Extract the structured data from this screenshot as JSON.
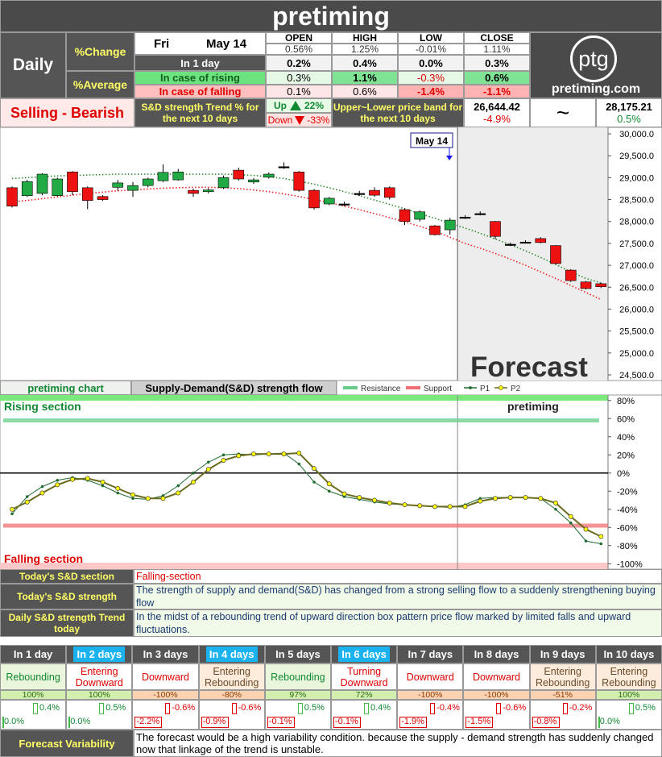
{
  "header": {
    "title": "pretiming"
  },
  "summary": {
    "period": "Daily",
    "change_label": "%Change",
    "average_label": "%Average",
    "day": "Fri",
    "date": "May 14",
    "columns": [
      "OPEN",
      "HIGH",
      "LOW",
      "CLOSE"
    ],
    "change": [
      "0.56%",
      "1.25%",
      "-0.01%",
      "1.11%"
    ],
    "rows": [
      {
        "label": "In 1 day",
        "values": [
          "0.2%",
          "0.4%",
          "0.0%",
          "0.3%"
        ]
      },
      {
        "label": "In case of rising",
        "values": [
          "0.3%",
          "1.1%",
          "-0.3%",
          "0.6%"
        ]
      },
      {
        "label": "In case of falling",
        "values": [
          "0.1%",
          "0.6%",
          "-1.4%",
          "-1.1%"
        ]
      }
    ],
    "logo": "ptg",
    "site": "pretiming.com"
  },
  "trend": {
    "signal": "Selling - Bearish",
    "strength_label": "S&D strength Trend % for the next 10 days",
    "up_label": "Up",
    "up_value": "22%",
    "down_label": "Down",
    "down_value": "-33%",
    "band_label": "Upper~Lower price band for the next 10 days",
    "lower": "26,644.42",
    "lower_change": "-4.9%",
    "separator": "~",
    "upper": "28,175.21",
    "upper_change": "0.5%"
  },
  "chart_data": [
    {
      "type": "candlestick",
      "annotation": "May 14",
      "forecast_label": "Forecast",
      "ylim": [
        24500,
        30000
      ],
      "yticks": [
        {
          "value": 24500,
          "label": "24,500.0"
        },
        {
          "value": 25000,
          "label": "25,000.0"
        },
        {
          "value": 25500,
          "label": "25,500.0"
        },
        {
          "value": 26000,
          "label": "26,000.0"
        },
        {
          "value": 26500,
          "label": "26,500.0"
        },
        {
          "value": 27000,
          "label": "27,000.0"
        },
        {
          "value": 27500,
          "label": "27,500.0"
        },
        {
          "value": 28000,
          "label": "28,000.0"
        },
        {
          "value": 28500,
          "label": "28,500.0"
        },
        {
          "value": 29000,
          "label": "29,000.0"
        },
        {
          "value": 29500,
          "label": "29,500.0"
        },
        {
          "value": 30000,
          "label": "30,000.0"
        }
      ],
      "up_color": "#22aa44",
      "down_color": "#ee1111",
      "flat_color": "#000000",
      "open": [
        28770,
        28590,
        28640,
        28590,
        29130,
        28770,
        28570,
        28780,
        28710,
        28820,
        28930,
        28950,
        28710,
        28680,
        28770,
        29170,
        28900,
        29010,
        29250,
        29130,
        28710,
        28400,
        28400,
        28640,
        28710,
        28770,
        28270,
        28050,
        27900,
        27810,
        28100,
        28180,
        28000,
        27480,
        27530,
        27610,
        27450,
        26890,
        26620,
        26580
      ],
      "high": [
        28800,
        28950,
        29100,
        29000,
        29150,
        28800,
        28600,
        28950,
        28900,
        29000,
        29300,
        29200,
        28750,
        28760,
        29050,
        29230,
        28990,
        29120,
        29350,
        29150,
        28740,
        28560,
        28450,
        28700,
        28780,
        28800,
        28300,
        28250,
        27920,
        28080,
        28140,
        28230,
        28010,
        27520,
        27570,
        27640,
        27460,
        26910,
        26640,
        26600
      ],
      "low": [
        28320,
        28560,
        28600,
        28570,
        28600,
        28280,
        28470,
        28700,
        28560,
        28780,
        28900,
        28930,
        28560,
        28640,
        28740,
        28930,
        28860,
        28980,
        29200,
        28680,
        28270,
        28370,
        28350,
        28580,
        28560,
        28500,
        27920,
        28000,
        27680,
        27700,
        28060,
        28140,
        27600,
        27440,
        27500,
        27500,
        27020,
        26620,
        26450,
        26480
      ],
      "close": [
        28350,
        28910,
        29080,
        28970,
        28680,
        28480,
        28500,
        28880,
        28820,
        28970,
        29120,
        29130,
        28640,
        28720,
        29000,
        28970,
        28950,
        29080,
        29250,
        28710,
        28310,
        28530,
        28400,
        28640,
        28600,
        28550,
        28000,
        28220,
        27700,
        28030,
        28100,
        28180,
        27660,
        27480,
        27530,
        27520,
        27040,
        26650,
        26470,
        26510
      ],
      "lines": [
        {
          "color": "#2e8b2e",
          "values": [
            28980,
            29000,
            29020,
            29040,
            29050,
            29060,
            29070,
            29080,
            29080,
            29080,
            29080,
            29080,
            29080,
            29080,
            29080,
            29070,
            29050,
            29020,
            28980,
            28920,
            28850,
            28770,
            28680,
            28590,
            28490,
            28390,
            28290,
            28180,
            28070,
            27960,
            27850,
            27730,
            27600,
            27470,
            27330,
            27180,
            27020,
            26850,
            26700,
            26600
          ]
        },
        {
          "color": "#ee2222",
          "values": [
            28450,
            28480,
            28520,
            28560,
            28600,
            28640,
            28670,
            28700,
            28720,
            28740,
            28760,
            28770,
            28780,
            28780,
            28770,
            28750,
            28720,
            28680,
            28630,
            28570,
            28500,
            28430,
            28350,
            28270,
            28180,
            28090,
            27990,
            27890,
            27780,
            27640,
            27500,
            27390,
            27270,
            27140,
            27000,
            26850,
            26700,
            26540,
            26380,
            26220
          ]
        }
      ]
    },
    {
      "type": "line",
      "title": "Supply-Demand(S&D) strength flow",
      "label": "pretiming chart",
      "watermark": "pretiming",
      "rising_label": "Rising section",
      "falling_label": "Falling section",
      "ylim": [
        -106,
        86
      ],
      "yticks": [
        {
          "value": 80,
          "label": "80%"
        },
        {
          "value": 60,
          "label": "60%"
        },
        {
          "value": 40,
          "label": "40%"
        },
        {
          "value": 20,
          "label": "20%"
        },
        {
          "value": 0,
          "label": "0%"
        },
        {
          "value": -20,
          "label": "-20%"
        },
        {
          "value": -40,
          "label": "-40%"
        },
        {
          "value": -60,
          "label": "-60%"
        },
        {
          "value": -80,
          "label": "-80%"
        },
        {
          "value": -100,
          "label": "-100%"
        }
      ],
      "levels": [
        {
          "name": "Resistance",
          "color": "#66cc88",
          "value": 58
        },
        {
          "name": "Support",
          "color": "#f07070",
          "value": -58
        }
      ],
      "series": [
        {
          "name": "P1",
          "color": "#1f6b2f",
          "values": [
            -45,
            -26,
            -15,
            -8,
            -5,
            -8,
            -14,
            -22,
            -28,
            -29,
            -25,
            -14,
            0,
            12,
            20,
            21,
            20,
            21,
            22,
            10,
            -10,
            -20,
            -26,
            -29,
            -32,
            -34,
            -35,
            -36,
            -37,
            -38,
            -35,
            -28,
            -27,
            -27,
            -27,
            -28,
            -40,
            -55,
            -75,
            -78
          ]
        },
        {
          "name": "P2",
          "color": "#6b6b1f",
          "values": [
            -40,
            -32,
            -22,
            -13,
            -7,
            -6,
            -10,
            -17,
            -24,
            -28,
            -28,
            -22,
            -10,
            4,
            14,
            19,
            21,
            21,
            21,
            22,
            5,
            -12,
            -23,
            -27,
            -30,
            -33,
            -35,
            -36,
            -37,
            -37,
            -37,
            -31,
            -28,
            -27,
            -27,
            -28,
            -33,
            -48,
            -62,
            -70
          ]
        }
      ]
    }
  ],
  "status": {
    "rows": [
      {
        "label": "Today's S&D section",
        "text": "Falling-section"
      },
      {
        "label": "Today's S&D strength",
        "text": "The strength of supply and demand(S&D) has changed from a strong selling flow to a suddenly strengthening buying flow"
      },
      {
        "label": "Daily S&D strength Trend today",
        "text": "In the midst of a rebounding trend of upward direction box pattern price flow marked by limited falls and upward fluctuations."
      }
    ]
  },
  "forecast": {
    "days": [
      {
        "label": "In 1 day",
        "highlight": false,
        "state": "Rebounding",
        "strength": "100%",
        "high": "0.4%",
        "low": "0.0%"
      },
      {
        "label": "In 2 days",
        "highlight": true,
        "state": "Entering Downward",
        "strength": "100%",
        "high": "0.5%",
        "low": "0.0%"
      },
      {
        "label": "In 3 days",
        "highlight": false,
        "state": "Downward",
        "strength": "-100%",
        "high": "-0.6%",
        "low": "-2.2%"
      },
      {
        "label": "In 4 days",
        "highlight": true,
        "state": "Entering Rebounding",
        "strength": "-80%",
        "high": "-0.6%",
        "low": "-0.9%"
      },
      {
        "label": "In 5 days",
        "highlight": false,
        "state": "Rebounding",
        "strength": "97%",
        "high": "0.5%",
        "low": "-0.1%"
      },
      {
        "label": "In 6 days",
        "highlight": true,
        "state": "Turning Downward",
        "strength": "72%",
        "high": "0.4%",
        "low": "-0.1%"
      },
      {
        "label": "In 7 days",
        "highlight": false,
        "state": "Downward",
        "strength": "-100%",
        "high": "-0.4%",
        "low": "-1.9%"
      },
      {
        "label": "In 8 days",
        "highlight": false,
        "state": "Downward",
        "strength": "-100%",
        "high": "-0.6%",
        "low": "-1.5%"
      },
      {
        "label": "In 9 days",
        "highlight": false,
        "state": "Entering Rebounding",
        "strength": "-51%",
        "high": "-0.2%",
        "low": "-0.8%"
      },
      {
        "label": "In 10 days",
        "highlight": false,
        "state": "Entering Rebounding",
        "strength": "100%",
        "high": "0.5%",
        "low": "0.0%"
      }
    ]
  },
  "variability": {
    "label": "Forecast Variability",
    "text": "The forecast would be a high variability condition. because the supply - demand strength has suddenly changed now that linkage of the trend is unstable."
  }
}
